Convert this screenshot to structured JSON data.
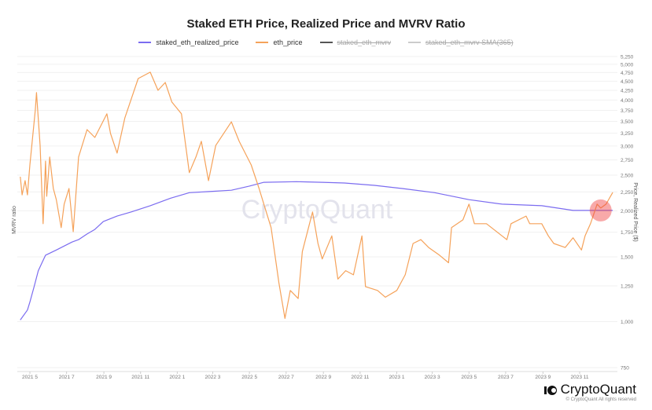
{
  "chart_data": {
    "type": "line",
    "title": "Staked ETH Price, Realized Price and MVRV Ratio",
    "ylabel_left": "MVRV ratio",
    "ylabel_right": "Price, Realized Price ($)",
    "yscale_right": "log",
    "ylim_right": [
      750,
      5250
    ],
    "y_ticks_right": [
      "750",
      "1,000",
      "1,250",
      "1,500",
      "1,750",
      "2,000",
      "2,250",
      "2,500",
      "2,750",
      "3,000",
      "3,250",
      "3,500",
      "3,750",
      "4,000",
      "4,250",
      "4,500",
      "4,750",
      "5,000",
      "5,250"
    ],
    "x_ticks": [
      "2021 5",
      "2021 7",
      "2021 9",
      "2021 11",
      "2022 1",
      "2022 3",
      "2022 5",
      "2022 7",
      "2022 9",
      "2022 11",
      "2023 1",
      "2023 3",
      "2023 5",
      "2023 7",
      "2023 9",
      "2023 11"
    ],
    "x_tick_dates": [
      "2021-05-01",
      "2021-07-01",
      "2021-09-01",
      "2021-11-01",
      "2022-01-01",
      "2022-03-01",
      "2022-05-01",
      "2022-07-01",
      "2022-09-01",
      "2022-11-01",
      "2023-01-01",
      "2023-03-01",
      "2023-05-01",
      "2023-07-01",
      "2023-09-01",
      "2023-11-01"
    ],
    "grid": true,
    "legend_position": "top",
    "series": [
      {
        "name": "staked_eth_realized_price",
        "color": "#7b6cf0",
        "visible": true,
        "x": [
          "2021-04-15",
          "2021-04-27",
          "2021-05-01",
          "2021-05-08",
          "2021-05-15",
          "2021-05-27",
          "2021-06-14",
          "2021-07-10",
          "2021-07-21",
          "2021-08-04",
          "2021-08-17",
          "2021-08-31",
          "2021-09-23",
          "2021-10-16",
          "2021-11-17",
          "2021-12-21",
          "2022-01-21",
          "2022-02-20",
          "2022-04-01",
          "2022-05-01",
          "2022-05-25",
          "2022-07-18",
          "2022-08-30",
          "2022-10-06",
          "2022-11-25",
          "2023-01-10",
          "2023-03-05",
          "2023-05-01",
          "2023-06-25",
          "2023-08-30",
          "2023-10-21",
          "2023-12-26"
        ],
        "y": [
          1010,
          1075,
          1130,
          1245,
          1375,
          1515,
          1565,
          1645,
          1670,
          1730,
          1780,
          1870,
          1935,
          1985,
          2065,
          2165,
          2240,
          2255,
          2275,
          2335,
          2390,
          2400,
          2390,
          2380,
          2345,
          2300,
          2240,
          2145,
          2085,
          2065,
          2005,
          2005
        ]
      },
      {
        "name": "eth_price",
        "color": "#f5a25a",
        "visible": true,
        "x": [
          "2021-04-15",
          "2021-04-18",
          "2021-04-23",
          "2021-04-27",
          "2021-05-01",
          "2021-05-10",
          "2021-05-12",
          "2021-05-18",
          "2021-05-23",
          "2021-05-27",
          "2021-05-29",
          "2021-06-03",
          "2021-06-09",
          "2021-06-14",
          "2021-06-22",
          "2021-06-27",
          "2021-07-05",
          "2021-07-12",
          "2021-07-21",
          "2021-08-04",
          "2021-08-17",
          "2021-09-06",
          "2021-09-12",
          "2021-09-23",
          "2021-10-06",
          "2021-10-28",
          "2021-11-17",
          "2021-11-30",
          "2021-12-12",
          "2021-12-23",
          "2022-01-08",
          "2022-01-21",
          "2022-02-01",
          "2022-02-10",
          "2022-02-22",
          "2022-03-06",
          "2022-04-01",
          "2022-04-14",
          "2022-05-04",
          "2022-05-17",
          "2022-05-25",
          "2022-06-06",
          "2022-06-19",
          "2022-06-29",
          "2022-07-08",
          "2022-07-21",
          "2022-07-28",
          "2022-08-14",
          "2022-08-23",
          "2022-08-30",
          "2022-09-15",
          "2022-09-25",
          "2022-10-08",
          "2022-10-21",
          "2022-11-04",
          "2022-11-10",
          "2022-11-30",
          "2022-12-13",
          "2023-01-01",
          "2023-01-15",
          "2023-01-28",
          "2023-02-10",
          "2023-02-23",
          "2023-03-13",
          "2023-03-28",
          "2023-04-02",
          "2023-04-21",
          "2023-05-01",
          "2023-05-10",
          "2023-05-30",
          "2023-06-25",
          "2023-07-03",
          "2023-07-10",
          "2023-08-04",
          "2023-08-10",
          "2023-08-30",
          "2023-09-10",
          "2023-09-19",
          "2023-10-08",
          "2023-10-21",
          "2023-11-04",
          "2023-11-10",
          "2023-11-19",
          "2023-11-30",
          "2023-12-06",
          "2023-12-15",
          "2023-12-26"
        ],
        "y": [
          2475,
          2210,
          2415,
          2210,
          2665,
          3760,
          4190,
          3010,
          1845,
          2730,
          2190,
          2800,
          2300,
          2145,
          1800,
          2085,
          2300,
          1755,
          2800,
          3325,
          3165,
          3670,
          3245,
          2870,
          3580,
          4575,
          4760,
          4250,
          4465,
          3950,
          3670,
          2540,
          2800,
          3090,
          2415,
          3010,
          3490,
          3090,
          2665,
          2300,
          2085,
          1800,
          1275,
          1020,
          1215,
          1155,
          1550,
          1985,
          1630,
          1480,
          1710,
          1305,
          1375,
          1340,
          1710,
          1245,
          1215,
          1165,
          1215,
          1340,
          1630,
          1670,
          1590,
          1515,
          1445,
          1800,
          1890,
          2085,
          1845,
          1845,
          1710,
          1670,
          1845,
          1935,
          1845,
          1845,
          1710,
          1630,
          1590,
          1690,
          1565,
          1710,
          1845,
          2085,
          2035,
          2085,
          2245
        ]
      },
      {
        "name": "staked_eth_mvrv",
        "color": "#555555",
        "visible": false
      },
      {
        "name": "staked_eth_mvrv SMA(365)",
        "color": "#cccccc",
        "visible": false
      }
    ],
    "annotation": {
      "type": "circle-highlight",
      "date": "2023-12-06",
      "value": 2005,
      "color": "#f04040"
    }
  },
  "watermark": "CryptoQuant",
  "footer": {
    "brand": "CryptoQuant",
    "copyright": "© CryptoQuant All rights reserved"
  }
}
